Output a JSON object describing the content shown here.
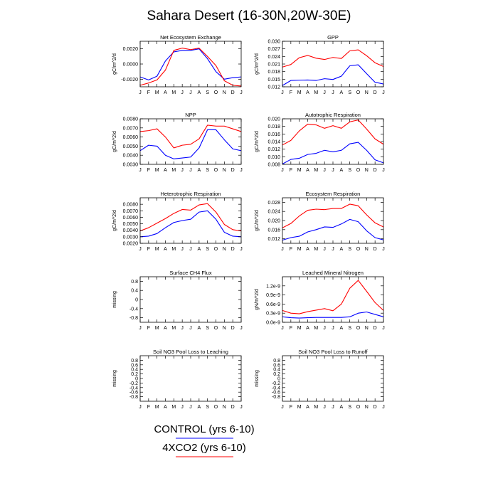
{
  "title": "Sahara Desert (16-30N,20W-30E)",
  "months": [
    "J",
    "F",
    "M",
    "A",
    "M",
    "J",
    "J",
    "A",
    "S",
    "O",
    "N",
    "D",
    "J"
  ],
  "colors": {
    "control": "#0000ff",
    "x4co2": "#ff0000"
  },
  "legend": [
    {
      "label": "CONTROL (yrs 6-10)",
      "color": "#0000ff"
    },
    {
      "label": "4XCO2 (yrs 6-10)",
      "color": "#ff0000"
    }
  ],
  "chart_data": [
    {
      "type": "line",
      "title": "Net Ecosystem Exchange",
      "ylabel": "gC/m^2/d",
      "ylim": [
        -0.003,
        0.003
      ],
      "yticks": [
        -0.002,
        0,
        0.002
      ],
      "yticklabels": [
        "-0.0020",
        "0.0000",
        "0.0020"
      ],
      "series": [
        {
          "key": "control",
          "values": [
            -0.0017,
            -0.0021,
            -0.0016,
            0.0004,
            0.0016,
            0.0018,
            0.0018,
            0.002,
            0.0007,
            -0.001,
            -0.002,
            -0.0018,
            -0.0017
          ]
        },
        {
          "key": "x4co2",
          "values": [
            -0.0028,
            -0.0025,
            -0.0021,
            -0.0008,
            0.0018,
            0.0021,
            0.0019,
            0.0021,
            0.001,
            -0.0002,
            -0.0022,
            -0.0028,
            -0.0029
          ]
        }
      ]
    },
    {
      "type": "line",
      "title": "GPP",
      "ylabel": "gC/m^2/d",
      "ylim": [
        0.012,
        0.03
      ],
      "yticks": [
        0.012,
        0.015,
        0.018,
        0.021,
        0.024,
        0.027,
        0.03
      ],
      "yticklabels": [
        "0.012",
        "0.015",
        "0.018",
        "0.021",
        "0.024",
        "0.027",
        "0.030"
      ],
      "series": [
        {
          "key": "control",
          "values": [
            0.0125,
            0.0145,
            0.0146,
            0.0147,
            0.0145,
            0.0152,
            0.0149,
            0.0162,
            0.0203,
            0.0207,
            0.0172,
            0.0138,
            0.0131
          ]
        },
        {
          "key": "x4co2",
          "values": [
            0.0198,
            0.0208,
            0.0235,
            0.0244,
            0.0233,
            0.0228,
            0.0236,
            0.0232,
            0.0262,
            0.0266,
            0.0243,
            0.0215,
            0.02
          ]
        }
      ]
    },
    {
      "type": "line",
      "title": "NPP",
      "ylabel": "gC/m^2/d",
      "ylim": [
        0.003,
        0.008
      ],
      "yticks": [
        0.003,
        0.004,
        0.005,
        0.006,
        0.007,
        0.008
      ],
      "yticklabels": [
        "0.0030",
        "0.0040",
        "0.0050",
        "0.0060",
        "0.0070",
        "0.0080"
      ],
      "series": [
        {
          "key": "control",
          "values": [
            0.0045,
            0.0051,
            0.005,
            0.004,
            0.0036,
            0.0037,
            0.0038,
            0.0048,
            0.0068,
            0.0068,
            0.0057,
            0.0047,
            0.0045
          ]
        },
        {
          "key": "x4co2",
          "values": [
            0.0066,
            0.0067,
            0.0069,
            0.006,
            0.0048,
            0.0051,
            0.0052,
            0.0058,
            0.0073,
            0.0072,
            0.0072,
            0.0069,
            0.0066
          ]
        }
      ]
    },
    {
      "type": "line",
      "title": "Autotrophic Respiration",
      "ylabel": "gC/m^2/d",
      "ylim": [
        0.008,
        0.02
      ],
      "yticks": [
        0.008,
        0.01,
        0.012,
        0.014,
        0.016,
        0.018,
        0.02
      ],
      "yticklabels": [
        "0.008",
        "0.010",
        "0.012",
        "0.014",
        "0.016",
        "0.018",
        "0.020"
      ],
      "series": [
        {
          "key": "control",
          "values": [
            0.0081,
            0.0093,
            0.0096,
            0.0106,
            0.0109,
            0.0117,
            0.0113,
            0.0117,
            0.0134,
            0.0138,
            0.0117,
            0.0092,
            0.0084
          ]
        },
        {
          "key": "x4co2",
          "values": [
            0.0131,
            0.0143,
            0.0168,
            0.0186,
            0.0184,
            0.0175,
            0.0182,
            0.0175,
            0.0192,
            0.0197,
            0.0173,
            0.0147,
            0.0133
          ]
        }
      ]
    },
    {
      "type": "line",
      "title": "Heterotrophic Respiration",
      "ylabel": "gC/m^2/d",
      "ylim": [
        0.002,
        0.009
      ],
      "yticks": [
        0.002,
        0.003,
        0.004,
        0.005,
        0.006,
        0.007,
        0.008
      ],
      "yticklabels": [
        "0.0020",
        "0.0030",
        "0.0040",
        "0.0050",
        "0.0060",
        "0.0070",
        "0.0080"
      ],
      "series": [
        {
          "key": "control",
          "values": [
            0.003,
            0.0031,
            0.0035,
            0.0044,
            0.0052,
            0.0055,
            0.0057,
            0.0068,
            0.007,
            0.0057,
            0.0037,
            0.0031,
            0.003
          ]
        },
        {
          "key": "x4co2",
          "values": [
            0.0039,
            0.0044,
            0.0051,
            0.0058,
            0.0066,
            0.0072,
            0.0071,
            0.0079,
            0.0081,
            0.0068,
            0.0049,
            0.0041,
            0.0039
          ]
        }
      ]
    },
    {
      "type": "line",
      "title": "Ecosystem Respiration",
      "ylabel": "gC/m^2/d",
      "ylim": [
        0.01,
        0.03
      ],
      "yticks": [
        0.012,
        0.016,
        0.02,
        0.024,
        0.028
      ],
      "yticklabels": [
        "0.012",
        "0.016",
        "0.020",
        "0.024",
        "0.028"
      ],
      "series": [
        {
          "key": "control",
          "values": [
            0.0114,
            0.0125,
            0.0131,
            0.015,
            0.016,
            0.0172,
            0.017,
            0.0185,
            0.0205,
            0.0195,
            0.0155,
            0.0125,
            0.0115
          ]
        },
        {
          "key": "x4co2",
          "values": [
            0.0168,
            0.0187,
            0.022,
            0.0245,
            0.025,
            0.0248,
            0.0253,
            0.0253,
            0.0272,
            0.0265,
            0.0225,
            0.019,
            0.0172
          ]
        }
      ]
    },
    {
      "type": "line",
      "title": "Surface CH4 Flux",
      "ylabel": "missing",
      "ylim": [
        -1,
        1
      ],
      "yticks": [
        -0.8,
        -0.4,
        0,
        0.4,
        0.8
      ],
      "yticklabels": [
        "-0.8",
        "-0.4",
        "0",
        "0.4",
        "0.8"
      ],
      "series": []
    },
    {
      "type": "line",
      "title": "Leached Mineral Nitrogen",
      "ylabel": "gN/m^2/d",
      "ylim": [
        0,
        1.5e-09
      ],
      "yticks": [
        0,
        3e-10,
        6e-10,
        9e-10,
        1.2e-09
      ],
      "yticklabels": [
        "0.0e-9",
        "0.3e-9",
        "0.6e-9",
        "0.9e-9",
        "1.2e-9"
      ],
      "series": [
        {
          "key": "control",
          "values": [
            1.8e-10,
            1.5e-10,
            1.4e-10,
            1.5e-10,
            1.6e-10,
            1.6e-10,
            1.6e-10,
            1.6e-10,
            1.8e-10,
            3e-10,
            3.4e-10,
            2.6e-10,
            1.8e-10
          ]
        },
        {
          "key": "x4co2",
          "values": [
            3.9e-10,
            3e-10,
            2.8e-10,
            3.5e-10,
            4e-10,
            4.5e-10,
            3.8e-10,
            6e-10,
            1.12e-09,
            1.38e-09,
            1.02e-09,
            6.5e-10,
            3.9e-10
          ]
        }
      ]
    },
    {
      "type": "line",
      "title": "Soil NO3 Pool Loss to Leaching",
      "ylabel": "missing",
      "ylim": [
        -1,
        1
      ],
      "yticks": [
        -0.8,
        -0.6,
        -0.4,
        -0.2,
        0,
        0.2,
        0.4,
        0.6,
        0.8
      ],
      "yticklabels": [
        "-0.8",
        "-0.6",
        "-0.4",
        "-0.2",
        "0",
        "0.2",
        "0.4",
        "0.6",
        "0.8"
      ],
      "series": []
    },
    {
      "type": "line",
      "title": "Soil NO3 Pool Loss to Runoff",
      "ylabel": "missing",
      "ylim": [
        -1,
        1
      ],
      "yticks": [
        -0.8,
        -0.6,
        -0.4,
        -0.2,
        0,
        0.2,
        0.4,
        0.6,
        0.8
      ],
      "yticklabels": [
        "-0.8",
        "-0.6",
        "-0.4",
        "-0.2",
        "0",
        "0.2",
        "0.4",
        "0.6",
        "0.8"
      ],
      "series": []
    }
  ]
}
